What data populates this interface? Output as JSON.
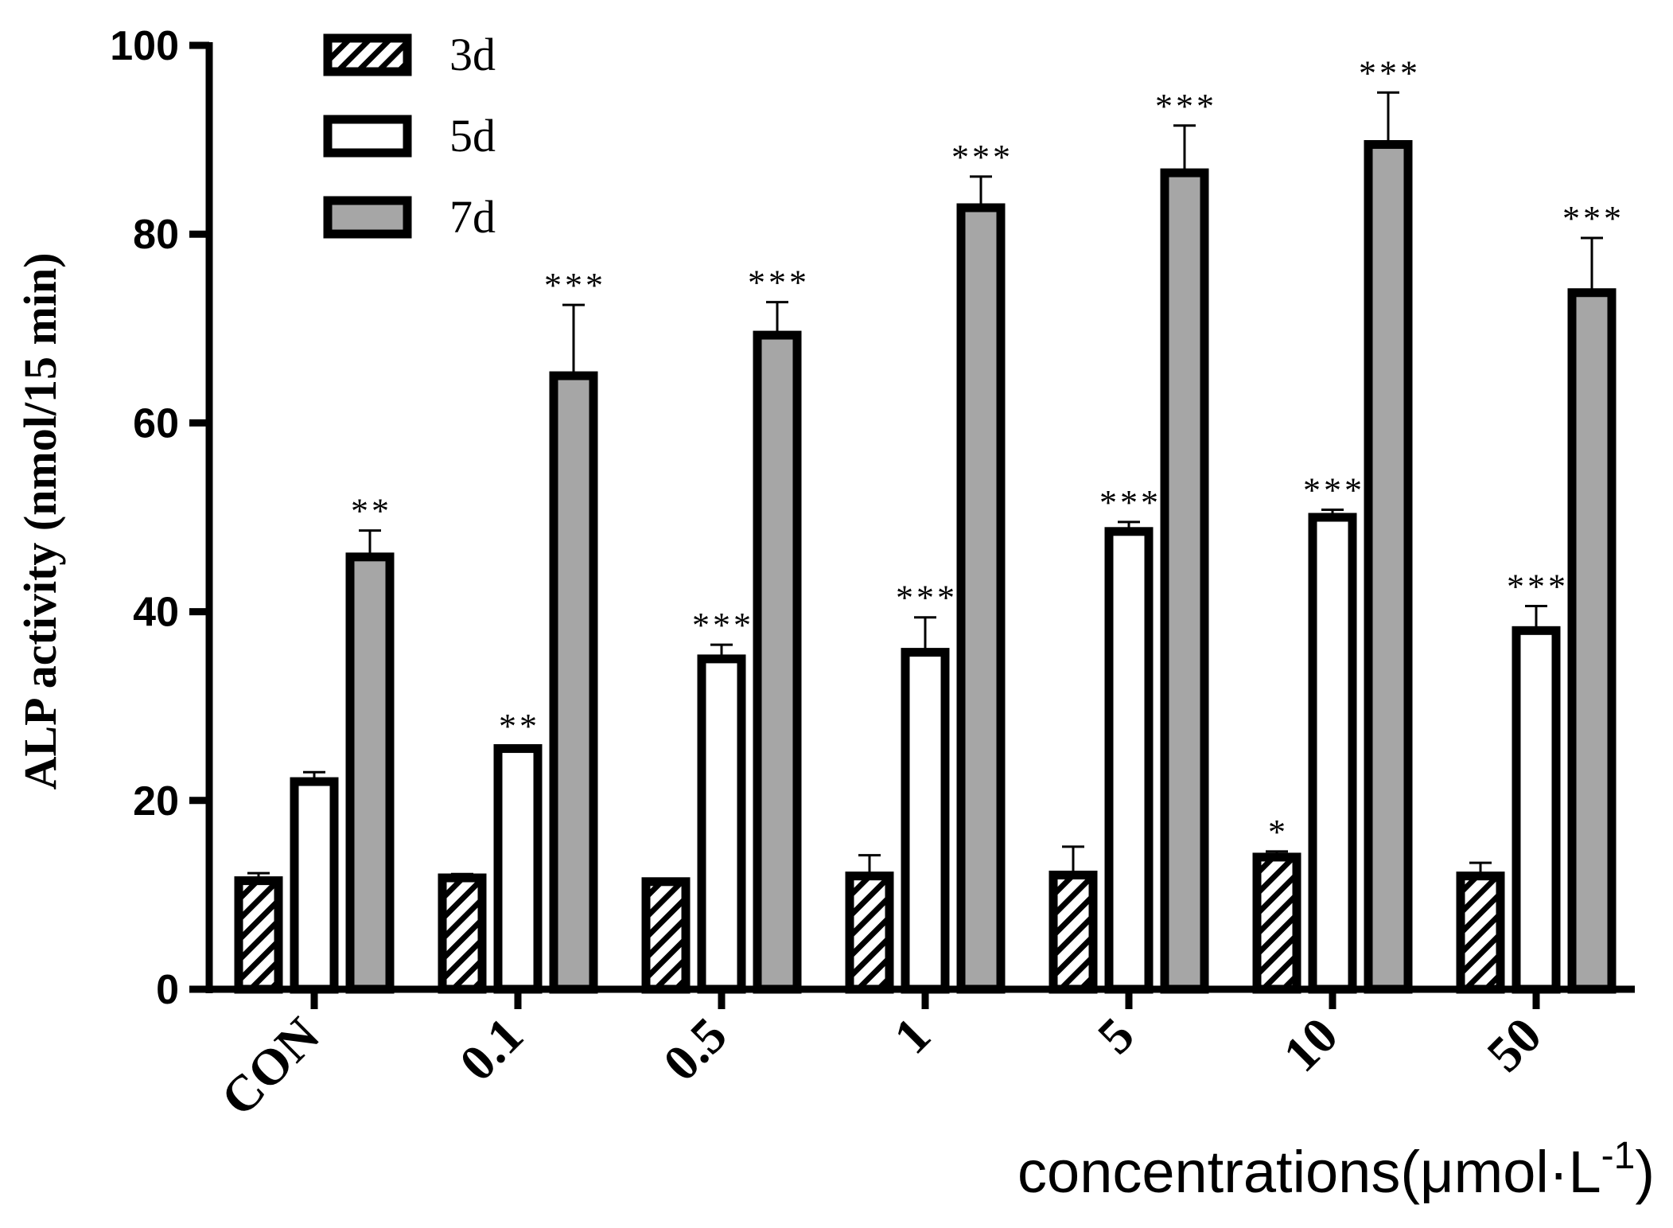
{
  "chart_data": {
    "type": "bar",
    "title": "",
    "ylabel": "ALP activity (nmol/15 min)",
    "xlabel": "concentrations(μmol·L",
    "xlabel_superscript": "-1",
    "xlabel_close": ")",
    "ylim": [
      0,
      100
    ],
    "yticks": [
      0,
      20,
      40,
      60,
      80,
      100
    ],
    "grid": false,
    "legend_position": "top-left",
    "categories": [
      "CON",
      "0.1",
      "0.5",
      "1",
      "5",
      "10",
      "50"
    ],
    "series": [
      {
        "name": "3d",
        "fill": "hatch",
        "values": [
          11.5,
          11.8,
          11.4,
          12.0,
          12.1,
          14.0,
          12.0
        ],
        "errors": [
          0.8,
          0.4,
          0.3,
          2.2,
          3.0,
          0.6,
          1.4
        ],
        "significance": [
          "",
          "",
          "",
          "",
          "",
          "*",
          ""
        ]
      },
      {
        "name": "5d",
        "fill": "#ffffff",
        "values": [
          22.0,
          25.5,
          35.0,
          35.7,
          48.5,
          50.0,
          38.0
        ],
        "errors": [
          1.0,
          0.3,
          1.5,
          3.7,
          1.0,
          0.8,
          2.6
        ],
        "significance": [
          "",
          "**",
          "***",
          "***",
          "***",
          "***",
          "***"
        ]
      },
      {
        "name": "7d",
        "fill": "#a6a6a6",
        "values": [
          45.8,
          65.0,
          69.3,
          82.8,
          86.5,
          89.5,
          73.8
        ],
        "errors": [
          2.8,
          7.5,
          3.5,
          3.3,
          5.0,
          5.5,
          5.8
        ],
        "significance": [
          "**",
          "***",
          "***",
          "***",
          "***",
          "***",
          "***"
        ]
      }
    ]
  }
}
